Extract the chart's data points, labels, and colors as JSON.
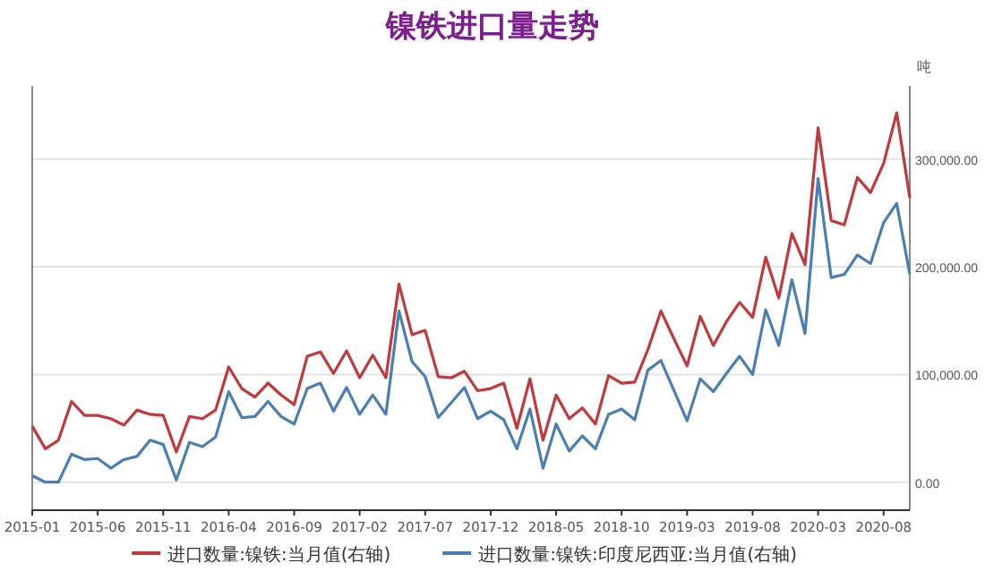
{
  "chart_data": {
    "type": "line",
    "title": "镍铁进口量走势",
    "ylabel": "吨",
    "categories": [
      "2015-01",
      null,
      null,
      null,
      null,
      "2015-06",
      null,
      null,
      null,
      null,
      "2015-11",
      null,
      null,
      null,
      null,
      "2016-04",
      null,
      null,
      null,
      null,
      "2016-09",
      null,
      null,
      null,
      null,
      "2017-02",
      null,
      null,
      null,
      null,
      "2017-07",
      null,
      null,
      null,
      null,
      "2017-12",
      null,
      null,
      null,
      null,
      "2018-05",
      null,
      null,
      null,
      null,
      "2018-10",
      null,
      null,
      null,
      null,
      "2019-03",
      null,
      null,
      null,
      null,
      "2019-08",
      null,
      null,
      null,
      null,
      "2020-03",
      null,
      null,
      null,
      null,
      "2020-08",
      null,
      null
    ],
    "series": [
      {
        "name": "进口数量:镍铁:当月值(右轴)",
        "color": "#c0393b",
        "axis": "y2",
        "values": [
          52000,
          31000,
          39000,
          75000,
          62000,
          62000,
          59000,
          53000,
          67000,
          63000,
          62000,
          28000,
          61000,
          59000,
          67000,
          107000,
          87000,
          79000,
          92000,
          81000,
          72000,
          117000,
          121000,
          101000,
          122000,
          97000,
          118000,
          97000,
          184000,
          137000,
          141000,
          98000,
          97000,
          103000,
          85000,
          87000,
          92000,
          50000,
          96000,
          39000,
          81000,
          59000,
          69000,
          54000,
          99000,
          92000,
          93000,
          123000,
          159000,
          133000,
          108000,
          154000,
          127000,
          149000,
          167000,
          153000,
          209000,
          171000,
          231000,
          202000,
          329000,
          243000,
          239000,
          283000,
          269000,
          296000,
          343000,
          264000
        ]
      },
      {
        "name": "进口数量:镍铁:印度尼西亚:当月值(右轴)",
        "color": "#4a7fb5",
        "axis": "y2",
        "values": [
          6000,
          0,
          0,
          26000,
          21000,
          22000,
          13000,
          21000,
          24000,
          39000,
          35000,
          2000,
          37000,
          33000,
          42000,
          84000,
          60000,
          61000,
          75000,
          61000,
          54000,
          87000,
          92000,
          66000,
          88000,
          63000,
          81000,
          63000,
          159000,
          112000,
          98000,
          60000,
          74000,
          88000,
          59000,
          66000,
          58000,
          31000,
          68000,
          13000,
          54000,
          29000,
          43000,
          31000,
          63000,
          68000,
          58000,
          104000,
          113000,
          85000,
          57000,
          96000,
          84000,
          101000,
          117000,
          100000,
          160000,
          127000,
          188000,
          138000,
          282000,
          190000,
          193000,
          211000,
          203000,
          241000,
          259000,
          193000
        ]
      }
    ],
    "y2lim": [
      -26000,
      368000
    ],
    "y2ticks": [
      {
        "value": 0,
        "label": "0.00"
      },
      {
        "value": 100000,
        "label": "100,000.00"
      },
      {
        "value": 200000,
        "label": "200,000.00"
      },
      {
        "value": 300000,
        "label": "300,000.00"
      }
    ],
    "grid": "y",
    "legend": "bottom"
  }
}
